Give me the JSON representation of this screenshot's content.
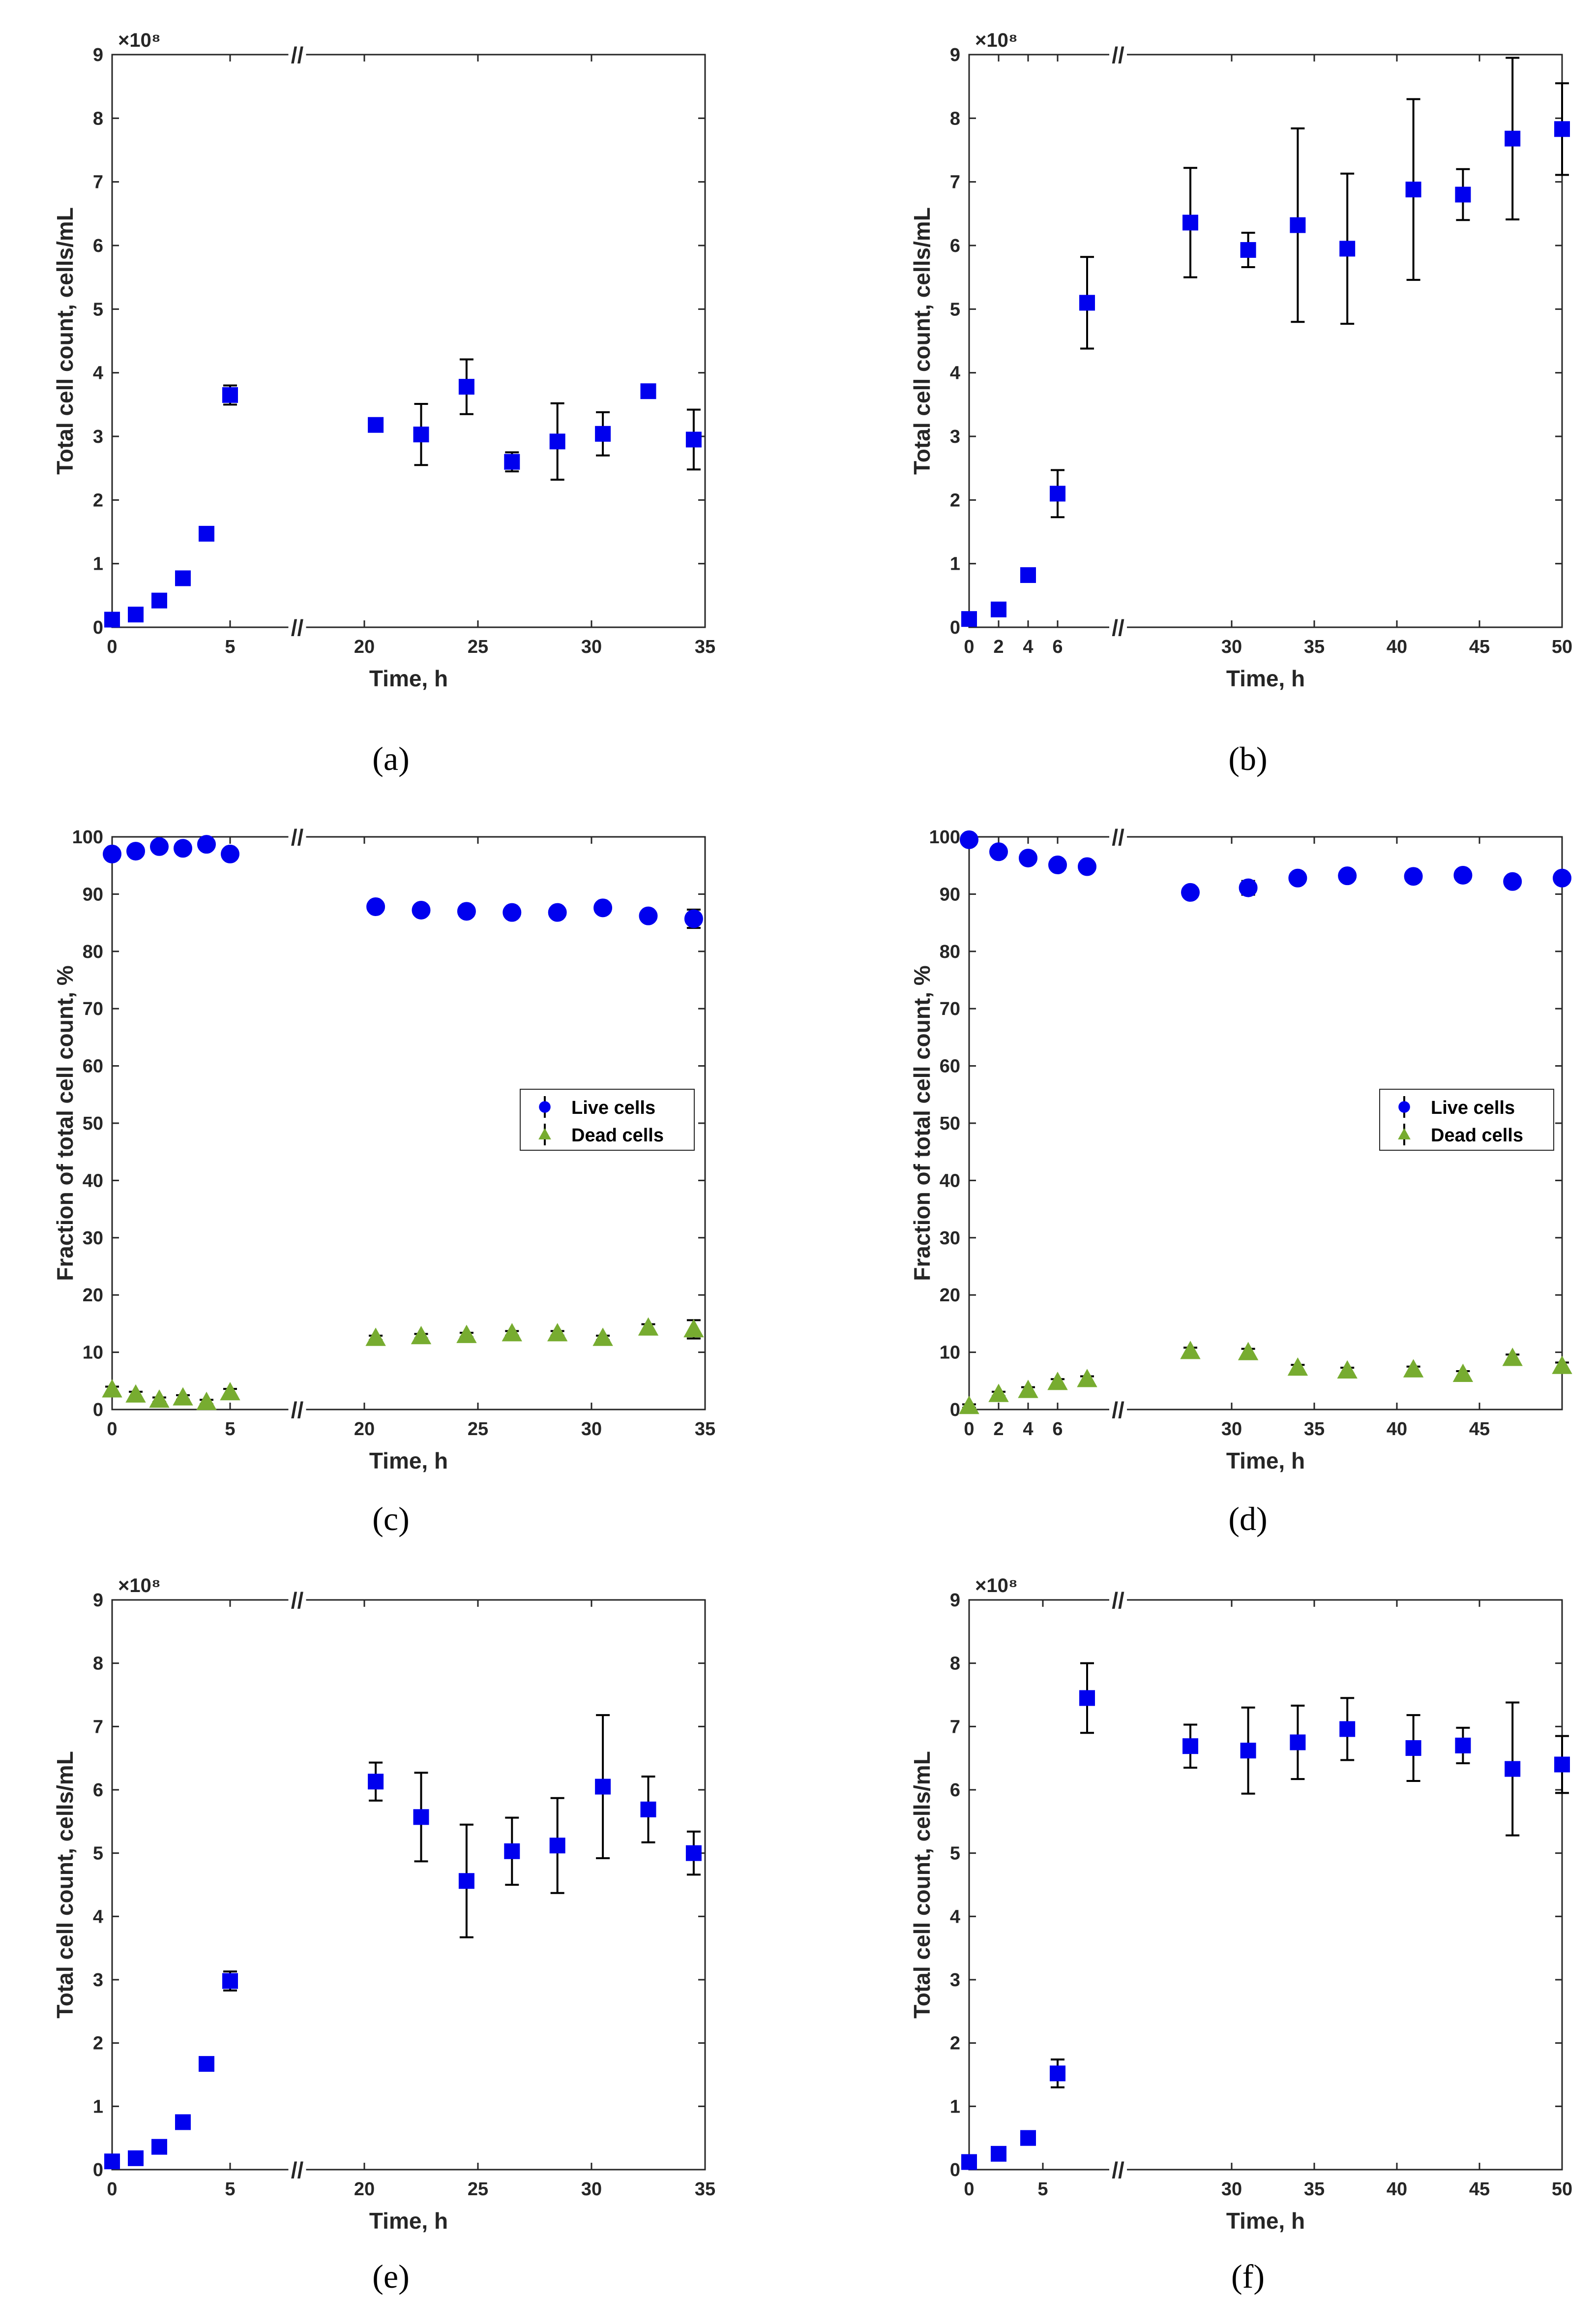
{
  "colors": {
    "live": "#0000ee",
    "dead": "#77ac30",
    "error_bar": "#000000",
    "axis": "#262626"
  },
  "legend": {
    "live": "Live cells",
    "dead": "Dead cells"
  },
  "chart_data": [
    {
      "id": "a",
      "caption": "(a)",
      "type": "scatter",
      "xlabel": "Time, h",
      "ylabel": "Total cell count, cells/mL",
      "multiplier": "×10⁸",
      "ylim": [
        0,
        9
      ],
      "yticks": [
        0,
        1,
        2,
        3,
        4,
        5,
        6,
        7,
        8,
        9
      ],
      "xticks": [
        "0",
        "5",
        "20",
        "25",
        "30",
        "35"
      ],
      "axis_break": "//",
      "segments": [
        {
          "range": [
            0,
            5
          ]
        },
        {
          "range": [
            20,
            35
          ]
        }
      ],
      "series": [
        {
          "name": "Total cells",
          "marker": "square",
          "x": [
            0,
            1,
            2,
            3,
            4,
            5,
            20.5,
            22.5,
            24.5,
            26.5,
            28.5,
            30.5,
            32.5,
            34.5
          ],
          "y": [
            0.12,
            0.2,
            0.42,
            0.77,
            1.47,
            3.65,
            3.18,
            3.03,
            3.78,
            2.6,
            2.92,
            3.04,
            3.71,
            2.95
          ],
          "err": [
            0.03,
            0.03,
            0.04,
            0.04,
            0.06,
            0.15,
            0.07,
            0.48,
            0.43,
            0.15,
            0.6,
            0.34,
            0.1,
            0.47
          ]
        }
      ]
    },
    {
      "id": "b",
      "caption": "(b)",
      "type": "scatter",
      "xlabel": "Time, h",
      "ylabel": "Total cell count, cells/mL",
      "multiplier": "×10⁸",
      "ylim": [
        0,
        9
      ],
      "yticks": [
        0,
        1,
        2,
        3,
        4,
        5,
        6,
        7,
        8,
        9
      ],
      "xticks": [
        "0",
        "2",
        "4",
        "6",
        "30",
        "35",
        "40",
        "45",
        "50"
      ],
      "axis_break": "//",
      "segments": [
        {
          "range": [
            0,
            8
          ]
        },
        {
          "range": [
            25,
            50
          ]
        }
      ],
      "series": [
        {
          "name": "Total cells",
          "marker": "square",
          "x": [
            0,
            2,
            4,
            6,
            8,
            27.5,
            31,
            34,
            37,
            41,
            44,
            47,
            50
          ],
          "y": [
            0.13,
            0.28,
            0.82,
            2.1,
            5.1,
            6.36,
            5.93,
            6.32,
            5.95,
            6.88,
            6.8,
            7.68,
            7.83
          ],
          "err": [
            0.03,
            0.04,
            0.05,
            0.37,
            0.72,
            0.86,
            0.27,
            1.52,
            1.18,
            1.42,
            0.4,
            1.27,
            0.72
          ]
        }
      ]
    },
    {
      "id": "c",
      "caption": "(c)",
      "type": "scatter",
      "xlabel": "Time, h",
      "ylabel": "Fraction of total cell count, %",
      "ylim": [
        0,
        100
      ],
      "yticks": [
        0,
        10,
        20,
        30,
        40,
        50,
        60,
        70,
        80,
        90,
        100
      ],
      "xticks": [
        "0",
        "5",
        "20",
        "25",
        "30",
        "35"
      ],
      "axis_break": "//",
      "segments": [
        {
          "range": [
            0,
            5
          ]
        },
        {
          "range": [
            20,
            35
          ]
        }
      ],
      "legend_entries": [
        "Live cells",
        "Dead cells"
      ],
      "series": [
        {
          "name": "Live cells",
          "marker": "circle",
          "x": [
            0,
            1,
            2,
            3,
            4,
            5,
            20.5,
            22.5,
            24.5,
            26.5,
            28.5,
            30.5,
            32.5,
            34.5
          ],
          "y": [
            97,
            97.5,
            98.3,
            98,
            98.7,
            97,
            87.8,
            87.2,
            87,
            86.8,
            86.8,
            87.6,
            86.2,
            85.7
          ],
          "err": [
            0.5,
            0.5,
            0.4,
            0.4,
            0.4,
            0.6,
            0.4,
            0.4,
            0.4,
            0.4,
            0.4,
            0.4,
            0.6,
            1.6
          ]
        },
        {
          "name": "Dead cells",
          "marker": "triangle",
          "x": [
            0,
            1,
            2,
            3,
            4,
            5,
            20.5,
            22.5,
            24.5,
            26.5,
            28.5,
            30.5,
            32.5,
            34.5
          ],
          "y": [
            3.5,
            2.6,
            1.7,
            2.1,
            1.3,
            3,
            12.5,
            12.8,
            13,
            13.3,
            13.3,
            12.5,
            14.3,
            14
          ],
          "err": [
            0.5,
            0.5,
            0.4,
            0.4,
            0.4,
            0.6,
            0.4,
            0.4,
            0.4,
            0.4,
            0.4,
            0.4,
            0.6,
            1.6
          ]
        }
      ]
    },
    {
      "id": "d",
      "caption": "(d)",
      "type": "scatter",
      "xlabel": "Time, h",
      "ylabel": "Fraction of total cell count, %",
      "ylim": [
        0,
        100
      ],
      "yticks": [
        0,
        10,
        20,
        30,
        40,
        50,
        60,
        70,
        80,
        90,
        100
      ],
      "xticks": [
        "0",
        "2",
        "4",
        "6",
        "30",
        "35",
        "40",
        "45"
      ],
      "axis_break": "//",
      "segments": [
        {
          "range": [
            0,
            8
          ]
        },
        {
          "range": [
            25,
            50
          ]
        }
      ],
      "legend_entries": [
        "Live cells",
        "Dead cells"
      ],
      "series": [
        {
          "name": "Live cells",
          "marker": "circle",
          "x": [
            0,
            2,
            4,
            6,
            8,
            27.5,
            31,
            34,
            37,
            41,
            44,
            47,
            50
          ],
          "y": [
            99.5,
            97.4,
            96.3,
            95.1,
            94.8,
            90.3,
            91.1,
            92.8,
            93.2,
            93.1,
            93.3,
            92.2,
            92.8
          ],
          "err": [
            0.3,
            0.4,
            0.5,
            0.5,
            0.5,
            0.6,
            1.2,
            0.5,
            0.5,
            0.5,
            0.5,
            0.5,
            0.5
          ]
        },
        {
          "name": "Dead cells",
          "marker": "triangle",
          "x": [
            0,
            2,
            4,
            6,
            8,
            27.5,
            31,
            34,
            37,
            41,
            44,
            47,
            50
          ],
          "y": [
            0.6,
            2.7,
            3.4,
            4.8,
            5.3,
            10.2,
            10,
            7.3,
            6.8,
            7,
            6.2,
            9,
            7.6
          ],
          "err": [
            0.3,
            0.4,
            0.5,
            0.5,
            0.5,
            0.6,
            0.6,
            0.5,
            0.5,
            0.5,
            0.5,
            0.6,
            0.6
          ]
        }
      ]
    },
    {
      "id": "e",
      "caption": "(e)",
      "type": "scatter",
      "xlabel": "Time, h",
      "ylabel": "Total cell count, cells/mL",
      "multiplier": "×10⁸",
      "ylim": [
        0,
        9
      ],
      "yticks": [
        0,
        1,
        2,
        3,
        4,
        5,
        6,
        7,
        8,
        9
      ],
      "xticks": [
        "0",
        "5",
        "20",
        "25",
        "30",
        "35"
      ],
      "axis_break": "//",
      "segments": [
        {
          "range": [
            0,
            5
          ]
        },
        {
          "range": [
            20,
            35
          ]
        }
      ],
      "series": [
        {
          "name": "Total cells",
          "marker": "square",
          "x": [
            0,
            1,
            2,
            3,
            4,
            5,
            20.5,
            22.5,
            24.5,
            26.5,
            28.5,
            30.5,
            32.5,
            34.5
          ],
          "y": [
            0.13,
            0.18,
            0.36,
            0.75,
            1.67,
            2.98,
            6.13,
            5.57,
            4.56,
            5.03,
            5.12,
            6.05,
            5.69,
            5.0
          ],
          "err": [
            0.03,
            0.03,
            0.04,
            0.04,
            0.06,
            0.15,
            0.3,
            0.7,
            0.89,
            0.53,
            0.75,
            1.13,
            0.52,
            0.34
          ]
        }
      ]
    },
    {
      "id": "f",
      "caption": "(f)",
      "type": "scatter",
      "xlabel": "Time, h",
      "ylabel": "Total cell count, cells/mL",
      "multiplier": "×10⁸",
      "ylim": [
        0,
        9
      ],
      "yticks": [
        0,
        1,
        2,
        3,
        4,
        5,
        6,
        7,
        8,
        9
      ],
      "xticks": [
        "0",
        "5",
        "30",
        "35",
        "40",
        "45",
        "50"
      ],
      "axis_break": "//",
      "segments": [
        {
          "range": [
            0,
            8
          ]
        },
        {
          "range": [
            25,
            50
          ]
        }
      ],
      "series": [
        {
          "name": "Total cells",
          "marker": "square",
          "x": [
            0,
            2,
            4,
            6,
            8,
            27.5,
            31,
            34,
            37,
            41,
            44,
            47,
            50
          ],
          "y": [
            0.12,
            0.25,
            0.5,
            1.52,
            7.45,
            6.69,
            6.62,
            6.75,
            6.96,
            6.66,
            6.7,
            6.33,
            6.4
          ],
          "err": [
            0.03,
            0.04,
            0.05,
            0.22,
            0.55,
            0.34,
            0.68,
            0.58,
            0.49,
            0.52,
            0.28,
            1.05,
            0.45
          ]
        }
      ]
    }
  ]
}
